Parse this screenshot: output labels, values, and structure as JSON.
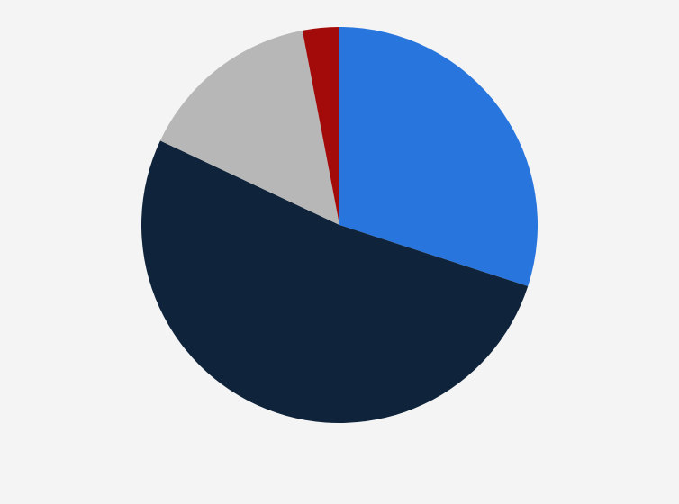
{
  "chart_data": {
    "type": "pie",
    "values": [
      30,
      52,
      15,
      3
    ],
    "colors": [
      "#2876dd",
      "#0f243b",
      "#b7b7b7",
      "#a30b0b"
    ]
  }
}
